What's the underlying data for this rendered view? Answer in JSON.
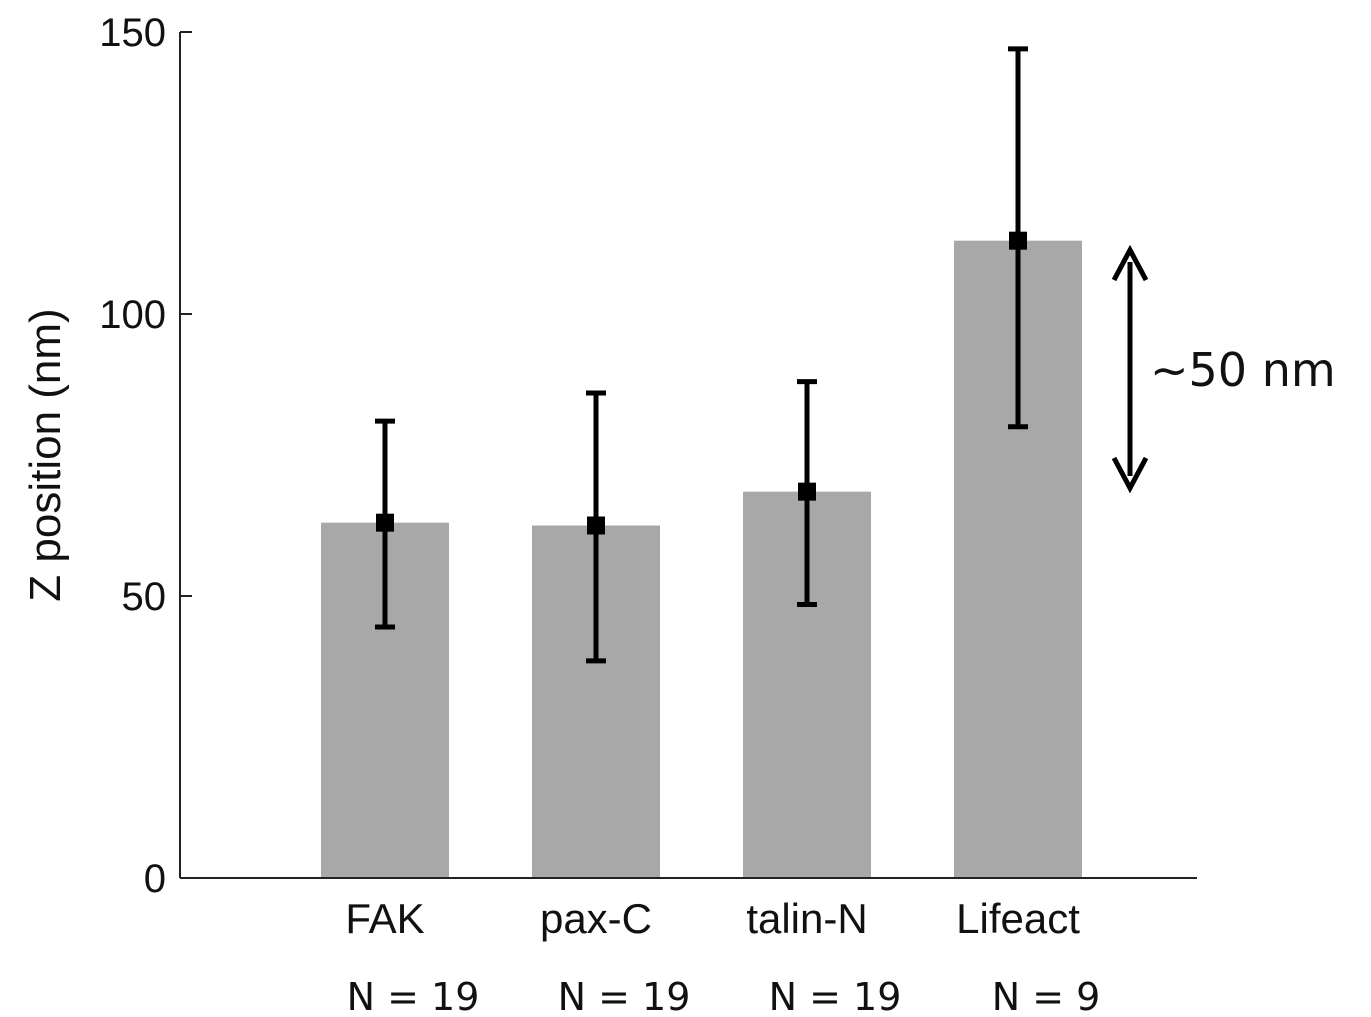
{
  "chart_data": {
    "type": "bar",
    "title": "",
    "xlabel": "",
    "ylabel": "Z position (nm)",
    "ylim": [
      0,
      150
    ],
    "yticks": [
      0,
      50,
      100,
      150
    ],
    "categories": [
      "FAK",
      "pax-C",
      "talin-N",
      "Lifeact"
    ],
    "values": [
      63,
      62.5,
      68.5,
      113
    ],
    "error_low": [
      44.5,
      38.5,
      48.5,
      80
    ],
    "error_high": [
      81,
      86,
      88,
      147
    ],
    "n_labels": [
      "N = 19",
      "N = 19",
      "N = 19",
      "N = 9"
    ],
    "annotation": {
      "text": "~50 nm",
      "from": 71,
      "to": 112
    },
    "bar_color": "#a8a8a8",
    "error_color": "#000000",
    "grid": false,
    "legend": "none"
  }
}
